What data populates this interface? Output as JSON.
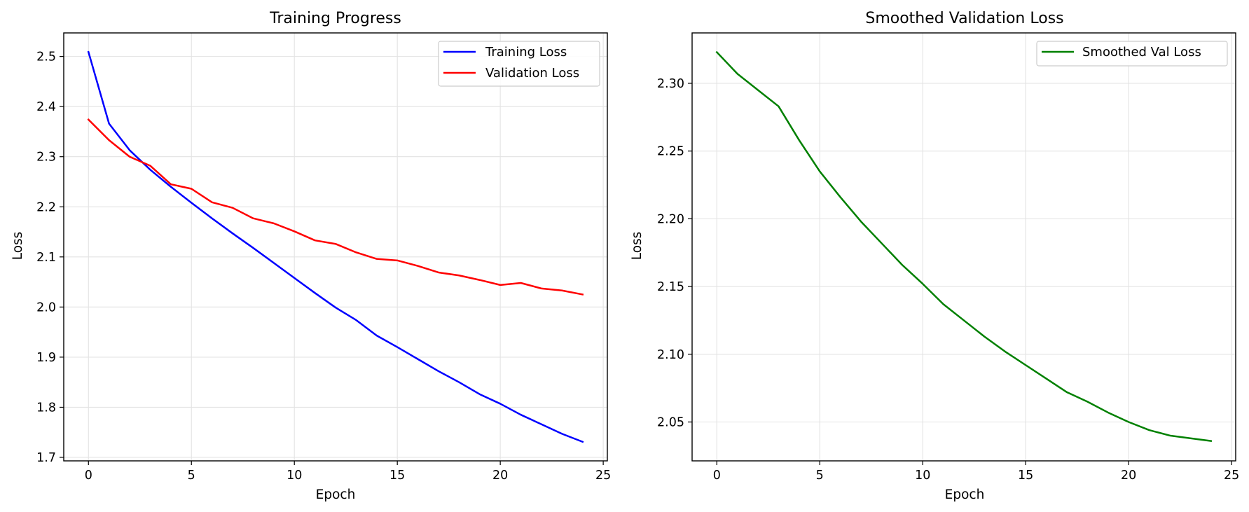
{
  "chart_data": [
    {
      "type": "line",
      "title": "Training Progress",
      "xlabel": "Epoch",
      "ylabel": "Loss",
      "xlim": [
        -1.2,
        25.2
      ],
      "ylim": [
        1.693,
        2.547
      ],
      "xticks": [
        0,
        5,
        10,
        15,
        20,
        25
      ],
      "xtick_labels": [
        "0",
        "5",
        "10",
        "15",
        "20",
        "25"
      ],
      "yticks": [
        1.7,
        1.8,
        1.9,
        2.0,
        2.1,
        2.2,
        2.3,
        2.4,
        2.5
      ],
      "ytick_labels": [
        "1.7",
        "1.8",
        "1.9",
        "2.0",
        "2.1",
        "2.2",
        "2.3",
        "2.4",
        "2.5"
      ],
      "grid": true,
      "legend_position": "upper right",
      "x": [
        0,
        1,
        2,
        3,
        4,
        5,
        6,
        7,
        8,
        9,
        10,
        11,
        12,
        13,
        14,
        15,
        16,
        17,
        18,
        19,
        20,
        21,
        22,
        23,
        24
      ],
      "series": [
        {
          "name": "Training Loss",
          "color": "#0000ff",
          "values": [
            2.509,
            2.366,
            2.313,
            2.274,
            2.24,
            2.208,
            2.177,
            2.147,
            2.118,
            2.088,
            2.058,
            2.028,
            1.999,
            1.974,
            1.943,
            1.92,
            1.896,
            1.872,
            1.85,
            1.826,
            1.807,
            1.785,
            1.766,
            1.747,
            1.731
          ]
        },
        {
          "name": "Validation Loss",
          "color": "#ff0000",
          "values": [
            2.374,
            2.333,
            2.3,
            2.282,
            2.245,
            2.236,
            2.209,
            2.198,
            2.177,
            2.167,
            2.151,
            2.133,
            2.126,
            2.109,
            2.096,
            2.093,
            2.082,
            2.069,
            2.063,
            2.054,
            2.044,
            2.048,
            2.037,
            2.033,
            2.025
          ]
        }
      ]
    },
    {
      "type": "line",
      "title": "Smoothed Validation Loss",
      "xlabel": "Epoch",
      "ylabel": "Loss",
      "xlim": [
        -1.2,
        25.2
      ],
      "ylim": [
        2.0213,
        2.3372
      ],
      "xticks": [
        0,
        5,
        10,
        15,
        20,
        25
      ],
      "xtick_labels": [
        "0",
        "5",
        "10",
        "15",
        "20",
        "25"
      ],
      "yticks": [
        2.05,
        2.1,
        2.15,
        2.2,
        2.25,
        2.3
      ],
      "ytick_labels": [
        "2.05",
        "2.10",
        "2.15",
        "2.20",
        "2.25",
        "2.30"
      ],
      "grid": true,
      "legend_position": "upper right",
      "x": [
        0,
        1,
        2,
        3,
        4,
        5,
        6,
        7,
        8,
        9,
        10,
        11,
        12,
        13,
        14,
        15,
        16,
        17,
        18,
        19,
        20,
        21,
        22,
        23,
        24
      ],
      "series": [
        {
          "name": "Smoothed Val Loss",
          "color": "#008000",
          "values": [
            2.323,
            2.307,
            2.295,
            2.283,
            2.258,
            2.235,
            2.216,
            2.198,
            2.182,
            2.166,
            2.152,
            2.137,
            2.125,
            2.113,
            2.102,
            2.092,
            2.082,
            2.072,
            2.065,
            2.057,
            2.05,
            2.044,
            2.04,
            2.038,
            2.036
          ]
        }
      ]
    }
  ]
}
